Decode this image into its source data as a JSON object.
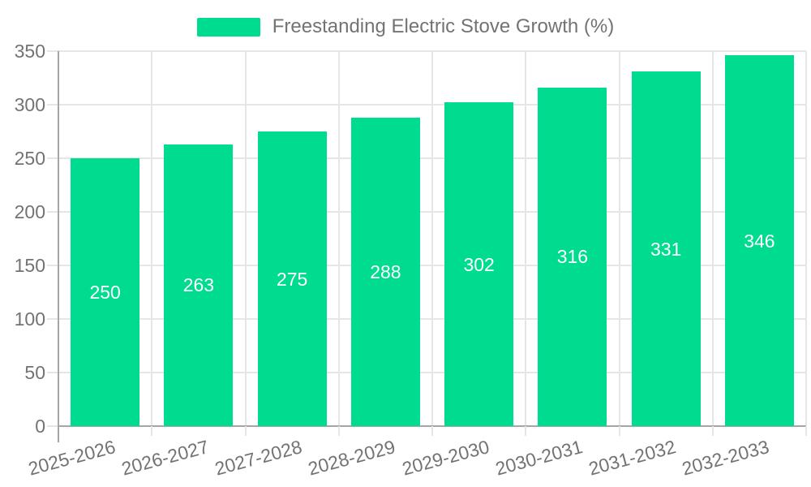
{
  "legend": {
    "label": "Freestanding Electric Stove Growth (%)",
    "swatch_color": "#00DC8F"
  },
  "chart_data": {
    "type": "bar",
    "title": "",
    "categories": [
      "2025-2026",
      "2026-2027",
      "2027-2028",
      "2028-2029",
      "2029-2030",
      "2030-2031",
      "2031-2032",
      "2032-2033"
    ],
    "series": [
      {
        "name": "Freestanding Electric Stove Growth (%)",
        "values": [
          250,
          263,
          275,
          288,
          302,
          316,
          331,
          346
        ],
        "color": "#00DC8F"
      }
    ],
    "ylim": [
      0,
      350
    ],
    "yticks": [
      0,
      50,
      100,
      150,
      200,
      250,
      300,
      350
    ],
    "bar_value_labels_shown": true,
    "legend_position": "top",
    "grid": true,
    "x_tick_rotation_deg": -15
  },
  "colors": {
    "bar": "#00DC8F",
    "bar_label_text": "#ffffff",
    "axis_text": "#737373",
    "grid_line": "#e6e6e6",
    "axis_line": "#a6a6a6",
    "background": "#ffffff"
  }
}
